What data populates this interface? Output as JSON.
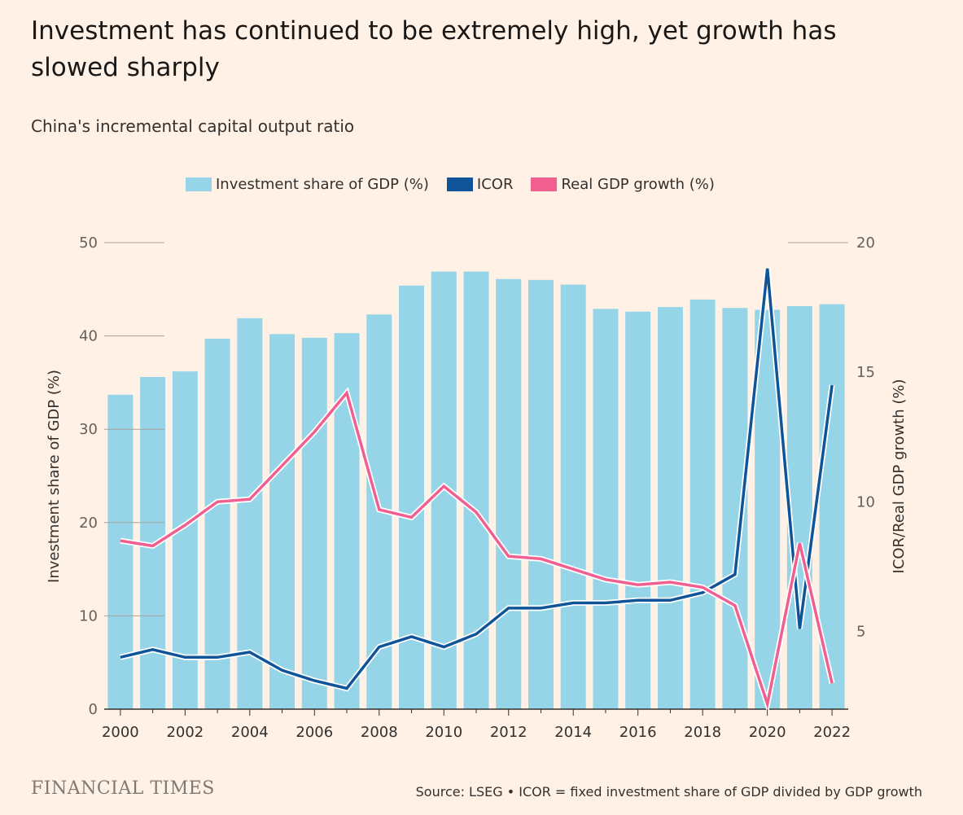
{
  "title": "Investment has continued to be extremely high, yet growth has slowed sharply",
  "subtitle": "China's incremental capital output ratio",
  "footer": {
    "brand": "FINANCIAL TIMES",
    "source": "Source: LSEG • ICOR = fixed investment share of GDP divided by GDP growth"
  },
  "colors": {
    "investment": "#96d4e7",
    "icor": "#0f5499",
    "growth": "#f05f8f",
    "background": "#fff1e5"
  },
  "chart_data": {
    "type": "bar",
    "x": [
      2000,
      2001,
      2002,
      2003,
      2004,
      2005,
      2006,
      2007,
      2008,
      2009,
      2010,
      2011,
      2012,
      2013,
      2014,
      2015,
      2016,
      2017,
      2018,
      2019,
      2020,
      2021,
      2022
    ],
    "xtick_labels": [
      "2000",
      "2002",
      "2004",
      "2006",
      "2008",
      "2010",
      "2012",
      "2014",
      "2016",
      "2018",
      "2020",
      "2022"
    ],
    "left_axis": {
      "label": "Investment share of GDP (%)",
      "ylim": [
        0,
        50
      ],
      "ticks": [
        0,
        10,
        20,
        30,
        40,
        50
      ]
    },
    "right_axis": {
      "label": "ICOR/Real GDP growth (%)",
      "ylim": [
        2,
        20
      ],
      "ticks": [
        5,
        10,
        15,
        20
      ]
    },
    "legend_position": "top",
    "grid": false,
    "series": [
      {
        "name": "Investment share of GDP (%)",
        "type": "bar",
        "axis": "left",
        "values": [
          33.7,
          35.6,
          36.2,
          39.7,
          41.9,
          40.2,
          39.8,
          40.3,
          42.3,
          45.4,
          46.9,
          46.9,
          46.1,
          46.0,
          45.5,
          42.9,
          42.6,
          43.1,
          43.9,
          43.0,
          42.8,
          43.2,
          43.4
        ]
      },
      {
        "name": "ICOR",
        "type": "line",
        "axis": "right",
        "values": [
          4.0,
          4.3,
          4.0,
          4.0,
          4.2,
          3.5,
          3.1,
          2.8,
          4.4,
          4.8,
          4.4,
          4.9,
          5.9,
          5.9,
          6.1,
          6.1,
          6.2,
          6.2,
          6.5,
          7.2,
          19.0,
          5.1,
          14.5
        ]
      },
      {
        "name": "Real GDP growth (%)",
        "type": "line",
        "axis": "right",
        "values": [
          8.5,
          8.3,
          9.1,
          10.0,
          10.1,
          11.4,
          12.7,
          14.2,
          9.7,
          9.4,
          10.6,
          9.6,
          7.9,
          7.8,
          7.4,
          7.0,
          6.8,
          6.9,
          6.7,
          6.0,
          2.2,
          8.4,
          3.0
        ]
      }
    ]
  }
}
